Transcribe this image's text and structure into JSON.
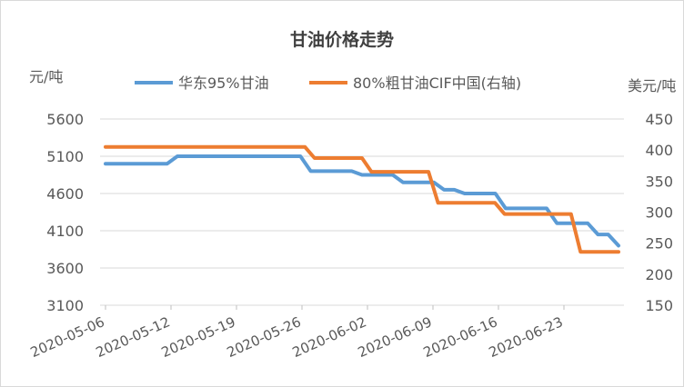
{
  "chart_data": {
    "type": "line",
    "title": "甘油价格走势",
    "y_left_unit": "元/吨",
    "y_right_unit": "美元/吨",
    "y_left_lim": [
      3100,
      5600
    ],
    "y_left_ticks": [
      "3100",
      "3600",
      "4100",
      "4600",
      "5100",
      "5600"
    ],
    "y_right_lim": [
      150,
      450
    ],
    "y_right_ticks": [
      "150",
      "200",
      "250",
      "300",
      "350",
      "400",
      "450"
    ],
    "x_tick_labels": [
      "2020-05-06",
      "2020-05-12",
      "2020-05-19",
      "2020-05-26",
      "2020-06-02",
      "2020-06-09",
      "2020-06-16",
      "2020-06-23"
    ],
    "grid": "horizontal",
    "legend_position": "top",
    "series": [
      {
        "name": "华东95%甘油",
        "axis": "left",
        "color": "#5b9bd5",
        "values": [
          5000,
          5000,
          5000,
          5000,
          5000,
          5000,
          5000,
          5100,
          5100,
          5100,
          5100,
          5100,
          5100,
          5100,
          5100,
          5100,
          5100,
          5100,
          5100,
          5100,
          4900,
          4900,
          4900,
          4900,
          4900,
          4850,
          4850,
          4850,
          4850,
          4750,
          4750,
          4750,
          4750,
          4650,
          4650,
          4600,
          4600,
          4600,
          4600,
          4400,
          4400,
          4400,
          4400,
          4400,
          4200,
          4200,
          4200,
          4200,
          4050,
          4050,
          3900
        ]
      },
      {
        "name": "80%粗甘油CIF中国(右轴)",
        "axis": "right",
        "color": "#ed7d31",
        "values": [
          405,
          405,
          405,
          405,
          405,
          405,
          405,
          405,
          405,
          405,
          405,
          405,
          405,
          405,
          405,
          405,
          405,
          405,
          405,
          405,
          405,
          405,
          387,
          387,
          387,
          387,
          387,
          387,
          365,
          365,
          365,
          365,
          365,
          365,
          365,
          315,
          315,
          315,
          315,
          315,
          315,
          315,
          297,
          297,
          297,
          297,
          297,
          297,
          297,
          297,
          236,
          236,
          236,
          236,
          236
        ]
      }
    ]
  }
}
